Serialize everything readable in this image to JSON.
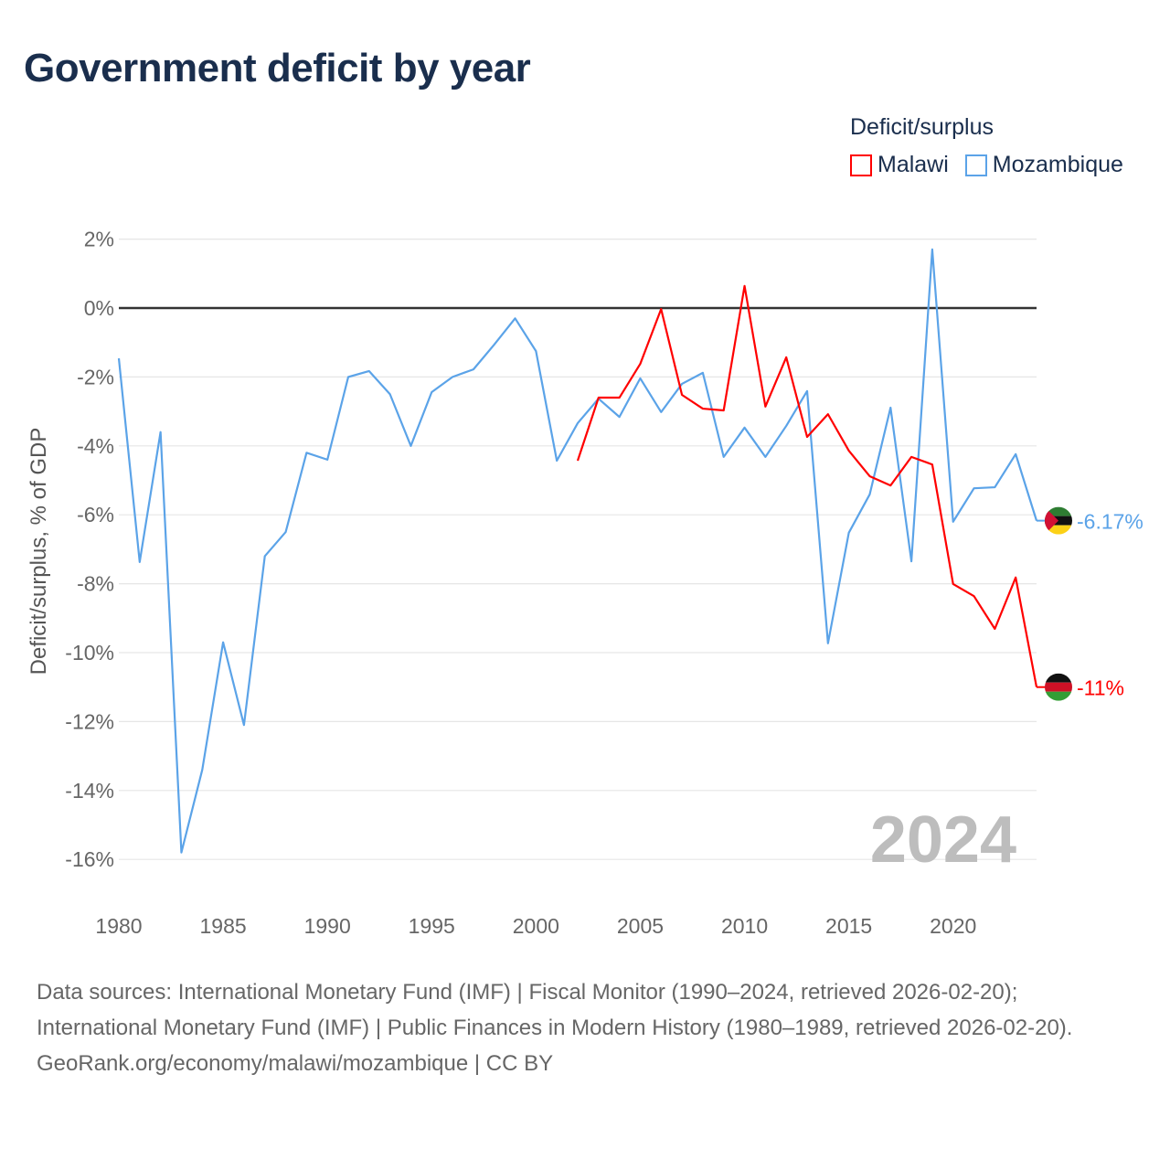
{
  "title": "Government deficit by year",
  "legend": {
    "title": "Deficit/surplus",
    "items": [
      {
        "name": "Malawi",
        "color": "#ff0000"
      },
      {
        "name": "Mozambique",
        "color": "#5ba3e8"
      }
    ]
  },
  "chart_data": {
    "type": "line",
    "title": "Government deficit by year",
    "xlabel": "",
    "ylabel": "Deficit/surplus, % of GDP",
    "xlim": [
      1980,
      2024
    ],
    "ylim": [
      -17,
      2.5
    ],
    "yticks": [
      2,
      0,
      -2,
      -4,
      -6,
      -8,
      -10,
      -12,
      -14,
      -16
    ],
    "ytick_labels": [
      "2%",
      "0%",
      "-2%",
      "-4%",
      "-6%",
      "-8%",
      "-10%",
      "-12%",
      "-14%",
      "-16%"
    ],
    "xticks": [
      1980,
      1985,
      1990,
      1995,
      2000,
      2005,
      2010,
      2015,
      2020
    ],
    "xtick_labels": [
      "1980",
      "1985",
      "1990",
      "1995",
      "2000",
      "2005",
      "2010",
      "2015",
      "2020"
    ],
    "grid": true,
    "year_watermark": "2024",
    "series": [
      {
        "name": "Mozambique",
        "color": "#5ba3e8",
        "end_label": "-6.17%",
        "x": [
          1980,
          1981,
          1982,
          1983,
          1984,
          1985,
          1986,
          1987,
          1988,
          1989,
          1990,
          1991,
          1992,
          1993,
          1994,
          1995,
          1996,
          1997,
          1998,
          1999,
          2000,
          2001,
          2002,
          2003,
          2004,
          2005,
          2006,
          2007,
          2008,
          2009,
          2010,
          2011,
          2012,
          2013,
          2014,
          2015,
          2016,
          2017,
          2018,
          2019,
          2020,
          2021,
          2022,
          2023,
          2024
        ],
        "values": [
          -1.46,
          -7.37,
          -3.6,
          -15.8,
          -13.4,
          -9.7,
          -12.1,
          -7.2,
          -6.5,
          -4.2,
          -4.4,
          -2.0,
          -1.83,
          -2.5,
          -4.0,
          -2.44,
          -2.0,
          -1.78,
          -1.06,
          -0.3,
          -1.25,
          -4.43,
          -3.34,
          -2.63,
          -3.16,
          -2.04,
          -3.02,
          -2.2,
          -1.88,
          -4.32,
          -3.47,
          -4.32,
          -3.42,
          -2.41,
          -9.73,
          -6.52,
          -5.41,
          -2.89,
          -7.35,
          1.7,
          -6.2,
          -5.23,
          -5.2,
          -4.24,
          -6.17
        ]
      },
      {
        "name": "Malawi",
        "color": "#ff0000",
        "end_label": "-11%",
        "x": [
          2002,
          2003,
          2004,
          2005,
          2006,
          2007,
          2008,
          2009,
          2010,
          2011,
          2012,
          2013,
          2014,
          2015,
          2016,
          2017,
          2018,
          2019,
          2020,
          2021,
          2022,
          2023,
          2024
        ],
        "values": [
          -4.43,
          -2.6,
          -2.6,
          -1.62,
          -0.03,
          -2.52,
          -2.92,
          -2.97,
          0.64,
          -2.86,
          -1.43,
          -3.74,
          -3.08,
          -4.14,
          -4.88,
          -5.15,
          -4.32,
          -4.54,
          -8.01,
          -8.36,
          -9.31,
          -7.82,
          -11.0
        ]
      }
    ]
  },
  "footer": {
    "sources": "Data sources: International Monetary Fund (IMF) | Fiscal Monitor (1990–2024, retrieved 2026-02-20); International Monetary Fund (IMF) | Public Finances in Modern History (1980–1989, retrieved 2026-02-20).",
    "credit": "GeoRank.org/economy/malawi/mozambique | CC BY"
  }
}
